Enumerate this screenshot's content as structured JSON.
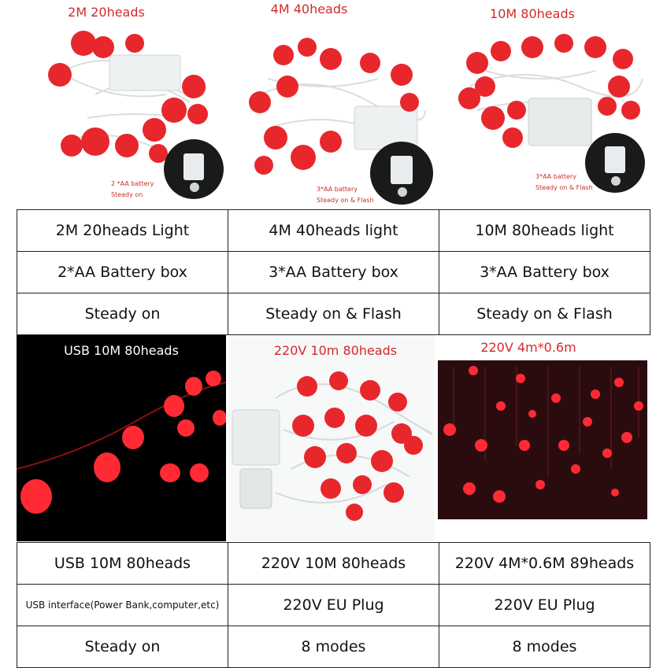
{
  "top_panels": [
    {
      "title": "2M 20heads",
      "note": [
        "2 *AA battery",
        "Steady on"
      ]
    },
    {
      "title": "4M 40heads",
      "note": [
        "3*AA battery",
        "Steady on & Flash"
      ]
    },
    {
      "title": "10M 80heads",
      "note": [
        "3*AA battery",
        "Steady on & Flash"
      ]
    }
  ],
  "bottom_panels": [
    {
      "title": "USB 10M 80heads"
    },
    {
      "title": "220V 10m 80heads"
    },
    {
      "title": "220V 4m*0.6m"
    }
  ],
  "top_table": [
    [
      "2M 20heads Light",
      "4M 40heads light",
      "10M 80heads light"
    ],
    [
      "2*AA Battery box",
      "3*AA Battery box",
      "3*AA Battery box"
    ],
    [
      "Steady on",
      "Steady on & Flash",
      "Steady on & Flash"
    ]
  ],
  "bottom_table": [
    [
      "USB 10M 80heads",
      "220V 10M 80heads",
      "220V 4M*0.6M 89heads"
    ],
    [
      "USB interface(Power Bank,computer,etc)",
      "220V EU Plug",
      "220V EU Plug"
    ],
    [
      "Steady on",
      "8 modes",
      "8 modes"
    ]
  ],
  "colors": {
    "lantern": "#e8272c",
    "title_red": "#d42a2a",
    "night_bg": "#000000"
  }
}
